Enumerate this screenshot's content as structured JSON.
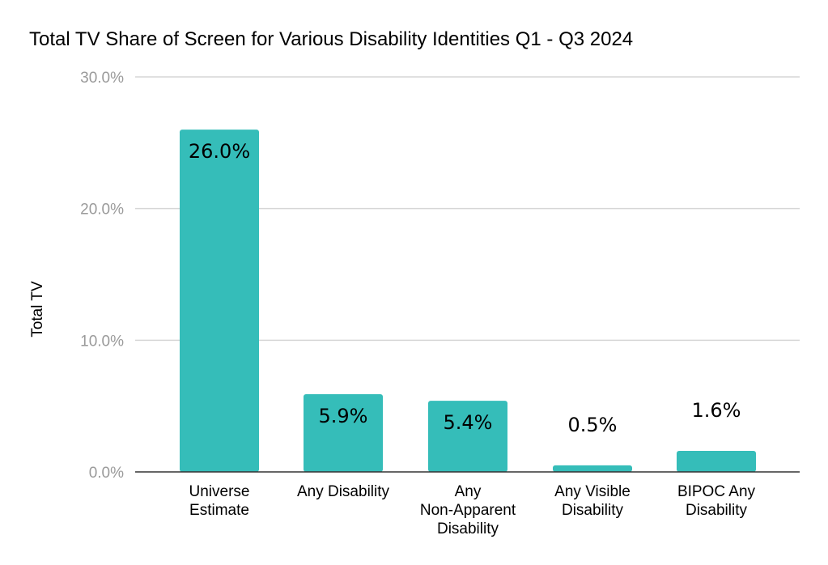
{
  "chart_data": {
    "type": "bar",
    "title": "Total TV Share of Screen for Various Disability Identities Q1 - Q3 2024",
    "xlabel": "",
    "ylabel": "Total TV",
    "categories": [
      [
        "Universe",
        "Estimate"
      ],
      [
        "Any Disability"
      ],
      [
        "Any",
        "Non-Apparent",
        "Disability"
      ],
      [
        "Any Visible",
        "Disability"
      ],
      [
        "BIPOC Any",
        "Disability"
      ]
    ],
    "values": [
      26.0,
      5.9,
      5.4,
      0.5,
      1.6
    ],
    "data_labels": [
      "26.0%",
      "5.9%",
      "5.4%",
      "0.5%",
      "1.6%"
    ],
    "ylim": [
      0,
      30
    ],
    "yticks": [
      0,
      10,
      20,
      30
    ],
    "ytick_labels": [
      "0.0%",
      "10.0%",
      "20.0%",
      "30.0%"
    ],
    "grid": true,
    "legend": "none",
    "bar_color": "#35bdb9"
  }
}
